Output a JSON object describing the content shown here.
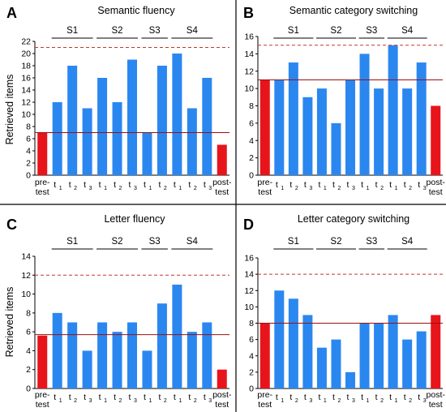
{
  "chart_data": [
    {
      "panel": "A",
      "type": "bar",
      "title": "Semantic fluency",
      "ylabel": "Retrieved items",
      "ylim": [
        0,
        22
      ],
      "yticks": [
        0,
        2,
        4,
        6,
        8,
        10,
        12,
        14,
        16,
        18,
        20,
        22
      ],
      "categories": [
        "pre-test",
        "S1 t1",
        "S1 t2",
        "S1 t3",
        "S2 t1",
        "S2 t2",
        "S2 t3",
        "S3 t1",
        "S3 t2",
        "S4 t1",
        "S4 t2",
        "S4 t3",
        "post-test"
      ],
      "values": [
        7,
        12,
        18,
        11,
        16,
        12,
        19,
        7,
        18,
        20,
        11,
        16,
        5
      ],
      "bar_colors": [
        "#e8141b",
        "#2b87f0",
        "#2b87f0",
        "#2b87f0",
        "#2b87f0",
        "#2b87f0",
        "#2b87f0",
        "#2b87f0",
        "#2b87f0",
        "#2b87f0",
        "#2b87f0",
        "#2b87f0",
        "#e8141b"
      ],
      "reference_lines": [
        {
          "style": "solid",
          "value": 7
        },
        {
          "style": "dashed",
          "value": 21
        }
      ],
      "sessions": [
        {
          "label": "S1",
          "from": 1,
          "to": 3
        },
        {
          "label": "S2",
          "from": 4,
          "to": 6
        },
        {
          "label": "S3",
          "from": 7,
          "to": 8
        },
        {
          "label": "S4",
          "from": 9,
          "to": 11
        }
      ]
    },
    {
      "panel": "B",
      "type": "bar",
      "title": "Semantic category switching",
      "ylabel": "",
      "ylim": [
        0,
        16
      ],
      "yticks": [
        0,
        2,
        4,
        6,
        8,
        10,
        12,
        14,
        16
      ],
      "categories": [
        "pre-test",
        "S1 t1",
        "S1 t2",
        "S1 t3",
        "S2 t1",
        "S2 t2",
        "S2 t3",
        "S3 t1",
        "S3 t2",
        "S4 t1",
        "S4 t2",
        "S4 t3",
        "post-test"
      ],
      "values": [
        11,
        11,
        13,
        9,
        10,
        6,
        11,
        14,
        10,
        15,
        10,
        13,
        8
      ],
      "bar_colors": [
        "#e8141b",
        "#2b87f0",
        "#2b87f0",
        "#2b87f0",
        "#2b87f0",
        "#2b87f0",
        "#2b87f0",
        "#2b87f0",
        "#2b87f0",
        "#2b87f0",
        "#2b87f0",
        "#2b87f0",
        "#e8141b"
      ],
      "reference_lines": [
        {
          "style": "solid",
          "value": 11
        },
        {
          "style": "dashed",
          "value": 15
        }
      ],
      "sessions": [
        {
          "label": "S1",
          "from": 1,
          "to": 3
        },
        {
          "label": "S2",
          "from": 4,
          "to": 6
        },
        {
          "label": "S3",
          "from": 7,
          "to": 8
        },
        {
          "label": "S4",
          "from": 9,
          "to": 11
        }
      ]
    },
    {
      "panel": "C",
      "type": "bar",
      "title": "Letter fluency",
      "ylabel": "Retrieved items",
      "ylim": [
        0,
        14
      ],
      "yticks": [
        0,
        2,
        4,
        6,
        8,
        10,
        12,
        14
      ],
      "categories": [
        "pre-test",
        "S1 t1",
        "S1 t2",
        "S1 t3",
        "S2 t1",
        "S2 t2",
        "S2 t3",
        "S3 t1",
        "S3 t2",
        "S4 t1",
        "S4 t2",
        "S4 t3",
        "post-test"
      ],
      "values": [
        5.6,
        8,
        7,
        4,
        7,
        6,
        7,
        4,
        9,
        11,
        6,
        7,
        2
      ],
      "bar_colors": [
        "#e8141b",
        "#2b87f0",
        "#2b87f0",
        "#2b87f0",
        "#2b87f0",
        "#2b87f0",
        "#2b87f0",
        "#2b87f0",
        "#2b87f0",
        "#2b87f0",
        "#2b87f0",
        "#2b87f0",
        "#e8141b"
      ],
      "reference_lines": [
        {
          "style": "solid",
          "value": 5.7
        },
        {
          "style": "dashed",
          "value": 12
        }
      ],
      "sessions": [
        {
          "label": "S1",
          "from": 1,
          "to": 3
        },
        {
          "label": "S2",
          "from": 4,
          "to": 6
        },
        {
          "label": "S3",
          "from": 7,
          "to": 8
        },
        {
          "label": "S4",
          "from": 9,
          "to": 11
        }
      ]
    },
    {
      "panel": "D",
      "type": "bar",
      "title": "Letter category switching",
      "ylabel": "",
      "ylim": [
        0,
        16
      ],
      "yticks": [
        0,
        2,
        4,
        6,
        8,
        10,
        12,
        14,
        16
      ],
      "categories": [
        "pre-test",
        "S1 t1",
        "S1 t2",
        "S1 t3",
        "S2 t1",
        "S2 t2",
        "S2 t3",
        "S3 t1",
        "S3 t2",
        "S4 t1",
        "S4 t2",
        "S4 t3",
        "post-test"
      ],
      "values": [
        8,
        12,
        11,
        9,
        5,
        6,
        2,
        8,
        8,
        9,
        6,
        7,
        9
      ],
      "bar_colors": [
        "#e8141b",
        "#2b87f0",
        "#2b87f0",
        "#2b87f0",
        "#2b87f0",
        "#2b87f0",
        "#2b87f0",
        "#2b87f0",
        "#2b87f0",
        "#2b87f0",
        "#2b87f0",
        "#2b87f0",
        "#e8141b"
      ],
      "reference_lines": [
        {
          "style": "solid",
          "value": 8
        },
        {
          "style": "dashed",
          "value": 14
        }
      ],
      "sessions": [
        {
          "label": "S1",
          "from": 1,
          "to": 3
        },
        {
          "label": "S2",
          "from": 4,
          "to": 6
        },
        {
          "label": "S3",
          "from": 7,
          "to": 8
        },
        {
          "label": "S4",
          "from": 9,
          "to": 11
        }
      ]
    }
  ],
  "xtick_labels": {
    "pre": [
      "pre-",
      "test"
    ],
    "post": [
      "post-",
      "test"
    ],
    "session_letter": "t",
    "session_subscripts": [
      "1",
      "2",
      "3",
      "1",
      "2",
      "3",
      "1",
      "2",
      "1",
      "2",
      "3"
    ]
  },
  "colors": {
    "treatment_bar": "#2b87f0",
    "test_bar": "#e8141b",
    "solid_line": "#9a1010",
    "dashed_line": "#c0392b",
    "axis": "#000000"
  }
}
